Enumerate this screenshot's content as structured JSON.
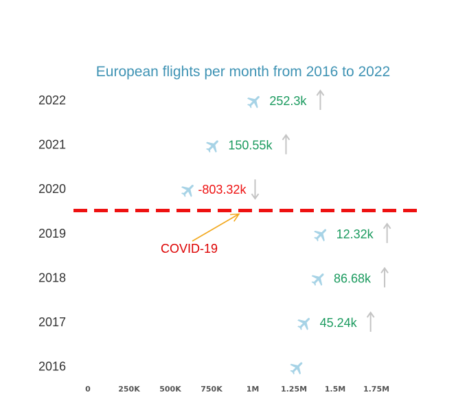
{
  "chart_data": {
    "type": "scatter",
    "title": "European flights per month from 2016 to 2022",
    "xlabel": "",
    "ylabel": "",
    "xlim": [
      0,
      2000000
    ],
    "x_ticks": [
      "0",
      "250K",
      "500K",
      "750K",
      "1M",
      "1.25M",
      "1.5M",
      "1.75M"
    ],
    "x_tick_values": [
      0,
      250000,
      500000,
      750000,
      1000000,
      1250000,
      1500000,
      1750000
    ],
    "categories": [
      "2016",
      "2017",
      "2018",
      "2019",
      "2020",
      "2021",
      "2022"
    ],
    "points": [
      {
        "year": "2016",
        "value": 1270000,
        "change_label": "",
        "direction": ""
      },
      {
        "year": "2017",
        "value": 1315000,
        "change_label": "45.24k",
        "direction": "up"
      },
      {
        "year": "2018",
        "value": 1400000,
        "change_label": "86.68k",
        "direction": "up"
      },
      {
        "year": "2019",
        "value": 1415000,
        "change_label": "12.32k",
        "direction": "up"
      },
      {
        "year": "2020",
        "value": 610000,
        "change_label": "-803.32k",
        "direction": "down"
      },
      {
        "year": "2021",
        "value": 760000,
        "change_label": "150.55k",
        "direction": "up"
      },
      {
        "year": "2022",
        "value": 1010000,
        "change_label": "252.3k",
        "direction": "up"
      }
    ],
    "divider_after": "2019",
    "annotation": {
      "text": "COVID-19",
      "points_to_value": 900000
    }
  },
  "colors": {
    "title": "#3f93b4",
    "year_label": "#333333",
    "tick_label": "#555555",
    "plane": "#a7d3e6",
    "positive": "#1a9a5e",
    "negative": "#ee1111",
    "arrow": "#c4c4c4",
    "divider": "#ee1111",
    "annotation": "#dd0000",
    "annotation_arrow": "#f2a81d"
  },
  "icons": {
    "marker": "airplane-icon",
    "up": "arrow-up-icon",
    "down": "arrow-down-icon"
  }
}
